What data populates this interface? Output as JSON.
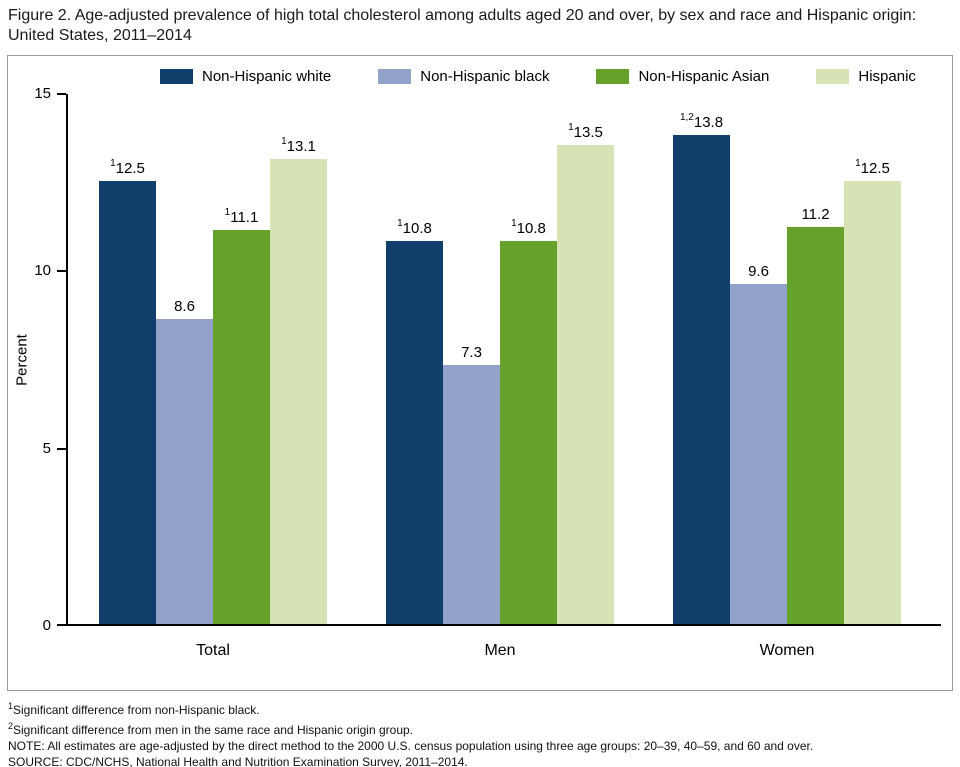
{
  "chart_data": {
    "type": "bar",
    "title": "Figure 2. Age-adjusted prevalence of high total cholesterol among adults aged 20 and over, by sex and race and Hispanic origin: United States, 2011–2014",
    "categories": [
      "Total",
      "Men",
      "Women"
    ],
    "series": [
      {
        "name": "Non-Hispanic white",
        "color": "#123e6b",
        "values": [
          12.5,
          10.8,
          13.8
        ],
        "sups": [
          "1",
          "1",
          "1,2"
        ]
      },
      {
        "name": "Non-Hispanic black",
        "color": "#92a2c8",
        "values": [
          8.6,
          7.3,
          9.6
        ],
        "sups": [
          "",
          "",
          ""
        ]
      },
      {
        "name": "Non-Hispanic Asian",
        "color": "#66a22b",
        "values": [
          11.1,
          10.8,
          11.2
        ],
        "sups": [
          "1",
          "1",
          ""
        ]
      },
      {
        "name": "Hispanic",
        "color": "#d5e3b5",
        "values": [
          13.1,
          13.5,
          12.5
        ],
        "sups": [
          "1",
          "1",
          "1"
        ]
      }
    ],
    "ylabel": "Percent",
    "ylim": [
      0,
      15
    ],
    "yticks": [
      15,
      10,
      5,
      0
    ],
    "legend_position": "top-inside",
    "grid": false
  },
  "footnotes": [
    {
      "sup": "1",
      "text": "Significant difference from non-Hispanic black."
    },
    {
      "sup": "2",
      "text": "Significant difference from men in the same race and Hispanic origin group."
    },
    {
      "sup": "",
      "text": "NOTE: All estimates are age-adjusted by the direct method to the 2000 U.S. census population using three age groups: 20–39, 40–59, and 60 and over."
    },
    {
      "sup": "",
      "text": "SOURCE: CDC/NCHS, National Health and Nutrition Examination Survey, 2011–2014."
    }
  ]
}
